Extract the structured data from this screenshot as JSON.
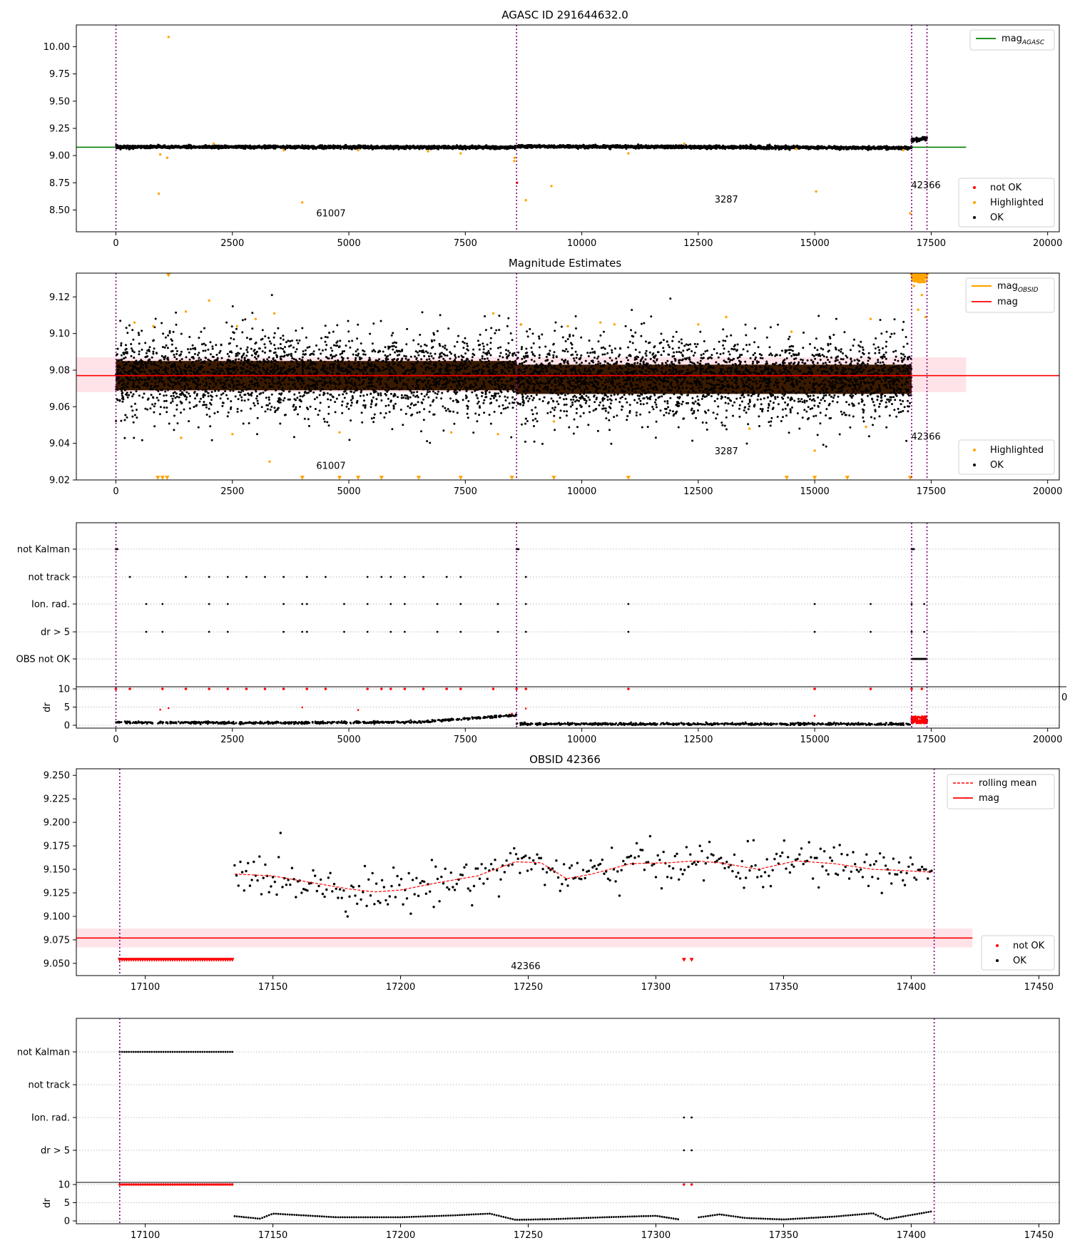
{
  "colors": {
    "ok": "#000000",
    "not_ok": "#ff0000",
    "highlighted": "#ffa500",
    "mag_agasc": "#008000",
    "mag": "#ff0000",
    "mag_obsid": "#ffa500",
    "band": "#ffc0cb",
    "obsid_boundary": "#800080",
    "grid": "#bbbbbb",
    "overview_fill": "#3a1a00"
  },
  "chart_data": [
    {
      "id": "agasc",
      "type": "scatter",
      "title": "AGASC ID 291644632.0",
      "xlim": [
        -850,
        20250
      ],
      "ylim": [
        8.3,
        10.2
      ],
      "xticks": [
        "0",
        "2500",
        "5000",
        "7500",
        "10000",
        "12500",
        "15000",
        "17500",
        "20000"
      ],
      "yticks": [
        "8.50",
        "8.75",
        "9.00",
        "9.25",
        "9.50",
        "9.75",
        "10.00"
      ],
      "obsid_boundaries": [
        0,
        8600,
        17080,
        17410
      ],
      "obsid_labels": [
        {
          "text": "61007",
          "x": 4300,
          "y": 8.44
        },
        {
          "text": "3287",
          "x": 12850,
          "y": 8.57
        },
        {
          "text": "42366",
          "x": 17070,
          "y": 8.7
        }
      ],
      "mag_agasc": 9.077,
      "ok_segments": [
        {
          "x0": 0,
          "x1": 8600,
          "y0": 9.08,
          "y1": 9.075,
          "spread": 0.018
        },
        {
          "x0": 8600,
          "x1": 17080,
          "y0": 9.085,
          "y1": 9.07,
          "spread": 0.018
        },
        {
          "x0": 17080,
          "x1": 17410,
          "y0": 9.14,
          "y1": 9.16,
          "spread": 0.02
        }
      ],
      "highlighted_points": [
        [
          1130,
          10.09
        ],
        [
          920,
          8.65
        ],
        [
          4000,
          8.57
        ],
        [
          9350,
          8.72
        ],
        [
          8800,
          8.59
        ],
        [
          15030,
          8.67
        ],
        [
          17050,
          8.47
        ],
        [
          1100,
          8.98
        ],
        [
          950,
          9.01
        ],
        [
          3600,
          9.05
        ],
        [
          5200,
          9.05
        ],
        [
          6700,
          9.04
        ],
        [
          7400,
          9.02
        ],
        [
          8550,
          8.95
        ],
        [
          8560,
          8.98
        ],
        [
          11000,
          9.02
        ],
        [
          14600,
          9.06
        ],
        [
          16900,
          9.05
        ],
        [
          2100,
          9.11
        ],
        [
          12200,
          9.11
        ]
      ],
      "not_ok_points": [
        [
          8610,
          8.75
        ]
      ],
      "legend_upper": [
        "mag_AGASC"
      ],
      "legend_lower": [
        "not OK",
        "Highlighted",
        "OK"
      ]
    },
    {
      "id": "estimates",
      "type": "scatter",
      "title": "Magnitude Estimates",
      "xlim": [
        -850,
        20250
      ],
      "ylim": [
        9.02,
        9.133
      ],
      "xticks": [
        "0",
        "2500",
        "5000",
        "7500",
        "10000",
        "12500",
        "15000",
        "17500",
        "20000"
      ],
      "yticks": [
        "9.02",
        "9.04",
        "9.06",
        "9.08",
        "9.10",
        "9.12"
      ],
      "obsid_boundaries": [
        0,
        8600,
        17080,
        17410
      ],
      "obsid_labels": [
        {
          "text": "61007",
          "x": 4300,
          "y": 9.026
        },
        {
          "text": "3287",
          "x": 12850,
          "y": 9.034
        },
        {
          "text": "42366",
          "x": 17070,
          "y": 9.042
        }
      ],
      "mag": 9.077,
      "mag_band": [
        9.068,
        9.087
      ],
      "ok_segments": [
        {
          "x0": 0,
          "x1": 8600,
          "center": 9.077,
          "core": 0.008,
          "spread": 0.018
        },
        {
          "x0": 8600,
          "x1": 17080,
          "center": 9.075,
          "core": 0.008,
          "spread": 0.018
        }
      ],
      "highlighted_points": [
        [
          400,
          9.106
        ],
        [
          800,
          9.104
        ],
        [
          1500,
          9.112
        ],
        [
          2000,
          9.118
        ],
        [
          2600,
          9.104
        ],
        [
          3000,
          9.108
        ],
        [
          3400,
          9.111
        ],
        [
          8100,
          9.111
        ],
        [
          8700,
          9.105
        ],
        [
          9700,
          9.104
        ],
        [
          10400,
          9.106
        ],
        [
          10700,
          9.105
        ],
        [
          12500,
          9.105
        ],
        [
          13100,
          9.109
        ],
        [
          14500,
          9.101
        ],
        [
          16200,
          9.108
        ],
        [
          1400,
          9.043
        ],
        [
          2500,
          9.045
        ],
        [
          3300,
          9.03
        ],
        [
          4800,
          9.046
        ],
        [
          7200,
          9.046
        ],
        [
          8200,
          9.045
        ],
        [
          9400,
          9.052
        ],
        [
          13600,
          9.048
        ],
        [
          15000,
          9.036
        ],
        [
          16100,
          9.049
        ],
        [
          17130,
          9.126
        ],
        [
          17220,
          9.113
        ],
        [
          17300,
          9.121
        ],
        [
          17380,
          9.109
        ]
      ],
      "highlighted_low_markers": [
        900,
        1000,
        1100,
        4000,
        4800,
        5200,
        5700,
        6500,
        7400,
        8500,
        9400,
        11000,
        14400,
        15000,
        15700,
        17050
      ],
      "highlighted_high_run": [
        17080,
        17410
      ],
      "legend_upper": [
        "mag_OBSID",
        "mag"
      ],
      "legend_lower": [
        "Highlighted",
        "OK"
      ]
    },
    {
      "id": "flags",
      "type": "scatter",
      "xlim": [
        -850,
        20250
      ],
      "xticks": [
        "0",
        "2500",
        "5000",
        "7500",
        "10000",
        "12500",
        "15000",
        "17500",
        "20000"
      ],
      "flag_rows": [
        "not Kalman",
        "not track",
        "Ion. rad.",
        "dr > 5",
        "OBS not OK"
      ],
      "obsid_boundaries": [
        0,
        8600,
        17080,
        17410
      ],
      "flag_points": {
        "not Kalman": [
          [
            0,
            40
          ],
          [
            8600,
            50
          ],
          [
            17080,
            60
          ]
        ],
        "not track": [
          [
            300
          ],
          [
            1500
          ],
          [
            2000
          ],
          [
            2400
          ],
          [
            2800
          ],
          [
            3200
          ],
          [
            3600
          ],
          [
            4100
          ],
          [
            4500
          ],
          [
            5400
          ],
          [
            5700
          ],
          [
            5900
          ],
          [
            6200
          ],
          [
            6600
          ],
          [
            7100
          ],
          [
            7400
          ],
          [
            8800
          ]
        ],
        "Ion. rad.": [
          [
            650
          ],
          [
            1000
          ],
          [
            2000
          ],
          [
            2400
          ],
          [
            3600
          ],
          [
            4000
          ],
          [
            4100
          ],
          [
            4900
          ],
          [
            5400
          ],
          [
            5900
          ],
          [
            6200
          ],
          [
            6900
          ],
          [
            7400
          ],
          [
            8200
          ],
          [
            8800
          ],
          [
            11000
          ],
          [
            15000
          ],
          [
            16200
          ],
          [
            17080
          ],
          [
            17350
          ]
        ],
        "dr > 5": [
          [
            650
          ],
          [
            1000
          ],
          [
            2000
          ],
          [
            2400
          ],
          [
            3600
          ],
          [
            4000
          ],
          [
            4100
          ],
          [
            4900
          ],
          [
            5400
          ],
          [
            5900
          ],
          [
            6200
          ],
          [
            6900
          ],
          [
            7400
          ],
          [
            8200
          ],
          [
            8800
          ],
          [
            11000
          ],
          [
            15000
          ],
          [
            16200
          ],
          [
            17080
          ],
          [
            17350
          ]
        ],
        "OBS not OK": [
          [
            17080,
            17410
          ]
        ]
      },
      "dr": {
        "ylim": [
          0,
          10
        ],
        "yticks": [
          "0",
          "5",
          "10"
        ],
        "ylabel": "dr",
        "label_right_cut": "0",
        "ok_segments": [
          {
            "x0": 0,
            "x1": 2500,
            "y0": 0.8,
            "y1": 0.7
          },
          {
            "x0": 2500,
            "x1": 6500,
            "y0": 0.6,
            "y1": 0.9
          },
          {
            "x0": 6500,
            "x1": 8600,
            "y0": 0.9,
            "y1": 2.8
          },
          {
            "x0": 8600,
            "x1": 17080,
            "y0": 0.4,
            "y1": 0.3
          }
        ],
        "not_ok_range": [
          17080,
          17410
        ],
        "red_top_markers": [
          0,
          300,
          1000,
          1500,
          2000,
          2400,
          2800,
          3200,
          3600,
          4100,
          4500,
          5400,
          5700,
          5900,
          6200,
          6600,
          7100,
          7400,
          8100,
          8600,
          8800,
          11000,
          15000,
          16200,
          17080,
          17300
        ],
        "red_mid_points": [
          [
            950,
            4.3
          ],
          [
            1130,
            4.7
          ],
          [
            4000,
            4.9
          ],
          [
            5200,
            4.2
          ],
          [
            8800,
            4.6
          ],
          [
            15000,
            2.6
          ],
          [
            8500,
            3.2
          ]
        ]
      }
    },
    {
      "id": "obsid",
      "type": "scatter",
      "title": "OBSID 42366",
      "xlim": [
        17073,
        17458
      ],
      "ylim": [
        9.037,
        9.257
      ],
      "xticks": [
        "17100",
        "17150",
        "17200",
        "17250",
        "17300",
        "17350",
        "17400",
        "17450"
      ],
      "yticks": [
        "9.050",
        "9.075",
        "9.100",
        "9.125",
        "9.150",
        "9.175",
        "9.200",
        "9.225",
        "9.250"
      ],
      "obsid_boundaries": [
        17090,
        17409
      ],
      "obsid_label": {
        "text": "42366",
        "x": 17249,
        "y": 9.044
      },
      "mag": 9.077,
      "mag_band": [
        9.067,
        9.087
      ],
      "ok_range": [
        17135,
        17408
      ],
      "not_ok_low_range": [
        17090,
        17135
      ],
      "not_ok_low_extra": [
        17311,
        17314
      ],
      "rolling_mean": [
        [
          17135,
          9.145
        ],
        [
          17150,
          9.143
        ],
        [
          17165,
          9.136
        ],
        [
          17180,
          9.129
        ],
        [
          17190,
          9.126
        ],
        [
          17200,
          9.128
        ],
        [
          17215,
          9.136
        ],
        [
          17230,
          9.143
        ],
        [
          17245,
          9.158
        ],
        [
          17255,
          9.157
        ],
        [
          17265,
          9.14
        ],
        [
          17275,
          9.145
        ],
        [
          17290,
          9.156
        ],
        [
          17305,
          9.157
        ],
        [
          17315,
          9.159
        ],
        [
          17325,
          9.157
        ],
        [
          17340,
          9.15
        ],
        [
          17355,
          9.159
        ],
        [
          17370,
          9.156
        ],
        [
          17385,
          9.15
        ],
        [
          17395,
          9.149
        ],
        [
          17408,
          9.147
        ]
      ],
      "legend_upper": [
        "rolling mean",
        "mag"
      ],
      "legend_lower": [
        "not OK",
        "OK"
      ]
    },
    {
      "id": "obsid_flags",
      "type": "scatter",
      "xlim": [
        17073,
        17458
      ],
      "xticks": [
        "17100",
        "17150",
        "17200",
        "17250",
        "17300",
        "17350",
        "17400",
        "17450"
      ],
      "flag_rows": [
        "not Kalman",
        "not track",
        "Ion. rad.",
        "dr > 5"
      ],
      "obsid_boundaries": [
        17090,
        17409
      ],
      "not_kalman_range": [
        17090,
        17135
      ],
      "ion_rad_points": [
        17311,
        17314
      ],
      "dr_gt5_points": [
        17311,
        17314
      ],
      "dr": {
        "ylim": [
          0,
          10
        ],
        "yticks": [
          "0",
          "5",
          "10"
        ],
        "ylabel": "dr",
        "red_top_range": [
          17090,
          17135
        ],
        "red_top_extra": [
          17311,
          17314
        ],
        "profile": [
          [
            17135,
            1.3
          ],
          [
            17145,
            0.6
          ],
          [
            17150,
            2.0
          ],
          [
            17175,
            1.0
          ],
          [
            17200,
            1.0
          ],
          [
            17220,
            1.5
          ],
          [
            17235,
            2.0
          ],
          [
            17245,
            0.3
          ],
          [
            17260,
            0.5
          ],
          [
            17280,
            1.0
          ],
          [
            17300,
            1.4
          ],
          [
            17310,
            0.3
          ],
          [
            17325,
            1.8
          ],
          [
            17335,
            0.8
          ],
          [
            17350,
            0.4
          ],
          [
            17370,
            1.2
          ],
          [
            17385,
            2.1
          ],
          [
            17390,
            0.4
          ],
          [
            17408,
            2.6
          ]
        ]
      }
    }
  ],
  "legend_labels": {
    "mag_agasc_main": "mag",
    "mag_agasc_sub": "AGASC",
    "mag_obsid_main": "mag",
    "mag_obsid_sub": "OBSID",
    "mag": "mag",
    "not_ok": "not OK",
    "highlighted": "Highlighted",
    "ok": "OK",
    "rolling_mean": "rolling mean"
  }
}
